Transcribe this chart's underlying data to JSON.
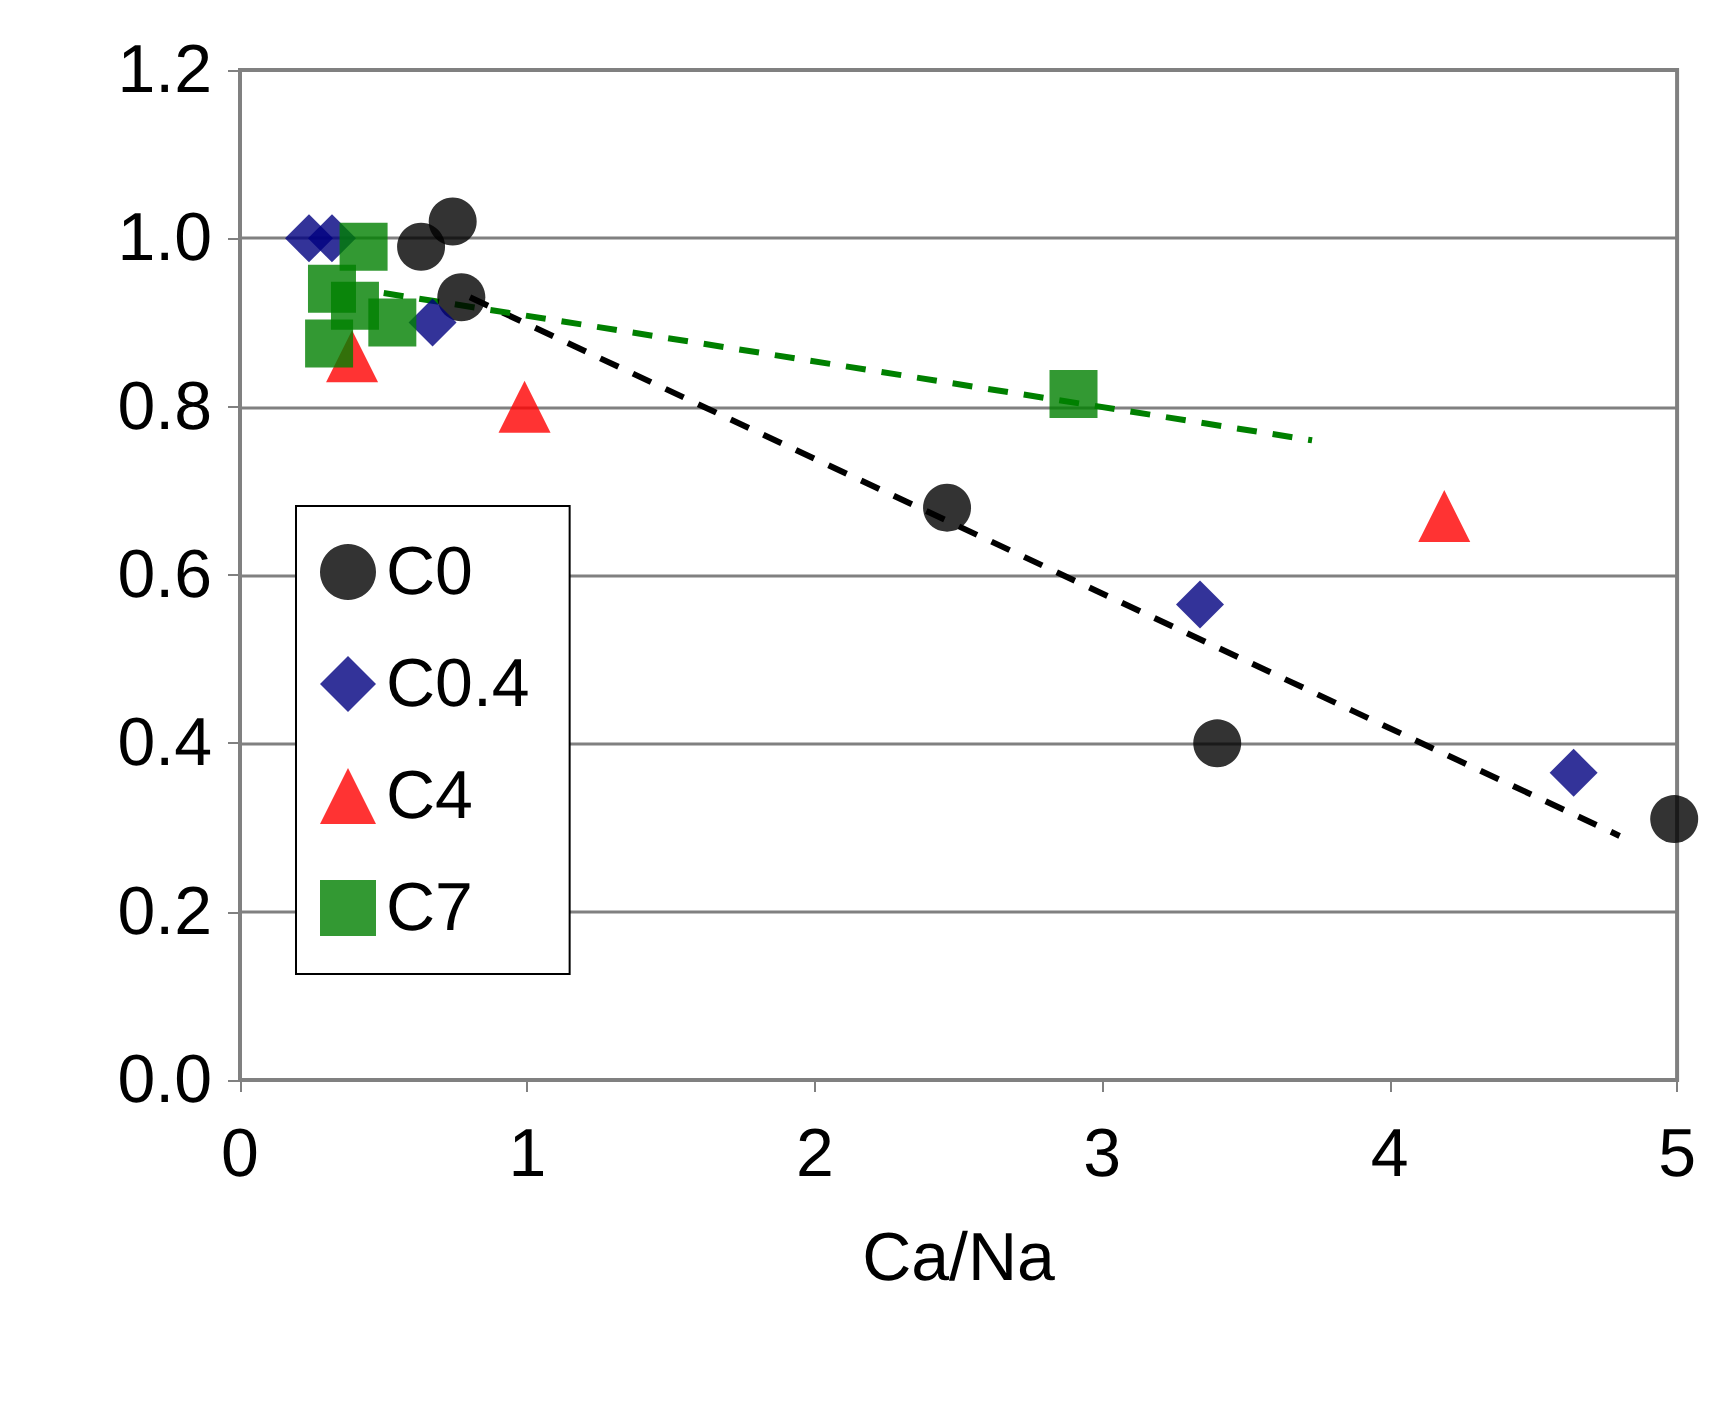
{
  "chart_data": {
    "type": "scatter",
    "xlabel": "Ca/Na",
    "xlim": [
      0,
      5
    ],
    "xticks": [
      0,
      1,
      2,
      3,
      4,
      5
    ],
    "ylim": [
      0,
      1.2
    ],
    "yticks": [
      {
        "value": 0,
        "label": "0.0"
      },
      {
        "value": 0.2,
        "label": "0.2"
      },
      {
        "value": 0.4,
        "label": "0.4"
      },
      {
        "value": 0.6,
        "label": "0.6"
      },
      {
        "value": 0.8,
        "label": "0.8"
      },
      {
        "value": 1,
        "label": "1.0"
      },
      {
        "value": 1.2,
        "label": "1.2"
      }
    ],
    "grid": "y",
    "legend": "left",
    "series": [
      {
        "name": "C0",
        "color": "#000000",
        "marker": "circle",
        "x": [
          0.63,
          0.74,
          0.77,
          2.46,
          3.4,
          4.99
        ],
        "values": [
          0.99,
          1.02,
          0.93,
          0.68,
          0.4,
          0.31
        ]
      },
      {
        "name": "C0.4",
        "color": "#000080",
        "marker": "diamond",
        "x": [
          0.24,
          0.32,
          0.67,
          3.34,
          4.64
        ],
        "values": [
          1.0,
          1.0,
          0.9,
          0.565,
          0.365
        ]
      },
      {
        "name": "C4",
        "color": "#ff0000",
        "marker": "triangle",
        "x": [
          0.39,
          0.99,
          4.19
        ],
        "values": [
          0.86,
          0.8,
          0.67
        ]
      },
      {
        "name": "C7",
        "color": "#008000",
        "marker": "square",
        "x": [
          0.31,
          0.4,
          0.43,
          0.32,
          0.53,
          2.9
        ],
        "values": [
          0.875,
          0.92,
          0.99,
          0.94,
          0.9,
          0.815
        ]
      },
      {
        "type": "line",
        "color": "#000000",
        "line_style": "dashed",
        "marker": "none",
        "x": [
          0.8,
          4.8
        ],
        "values": [
          0.93,
          0.29
        ]
      },
      {
        "type": "line",
        "color": "#008000",
        "line_style": "dashed",
        "marker": "none",
        "x": [
          0.5,
          3.73
        ],
        "values": [
          0.935,
          0.76
        ]
      }
    ]
  }
}
